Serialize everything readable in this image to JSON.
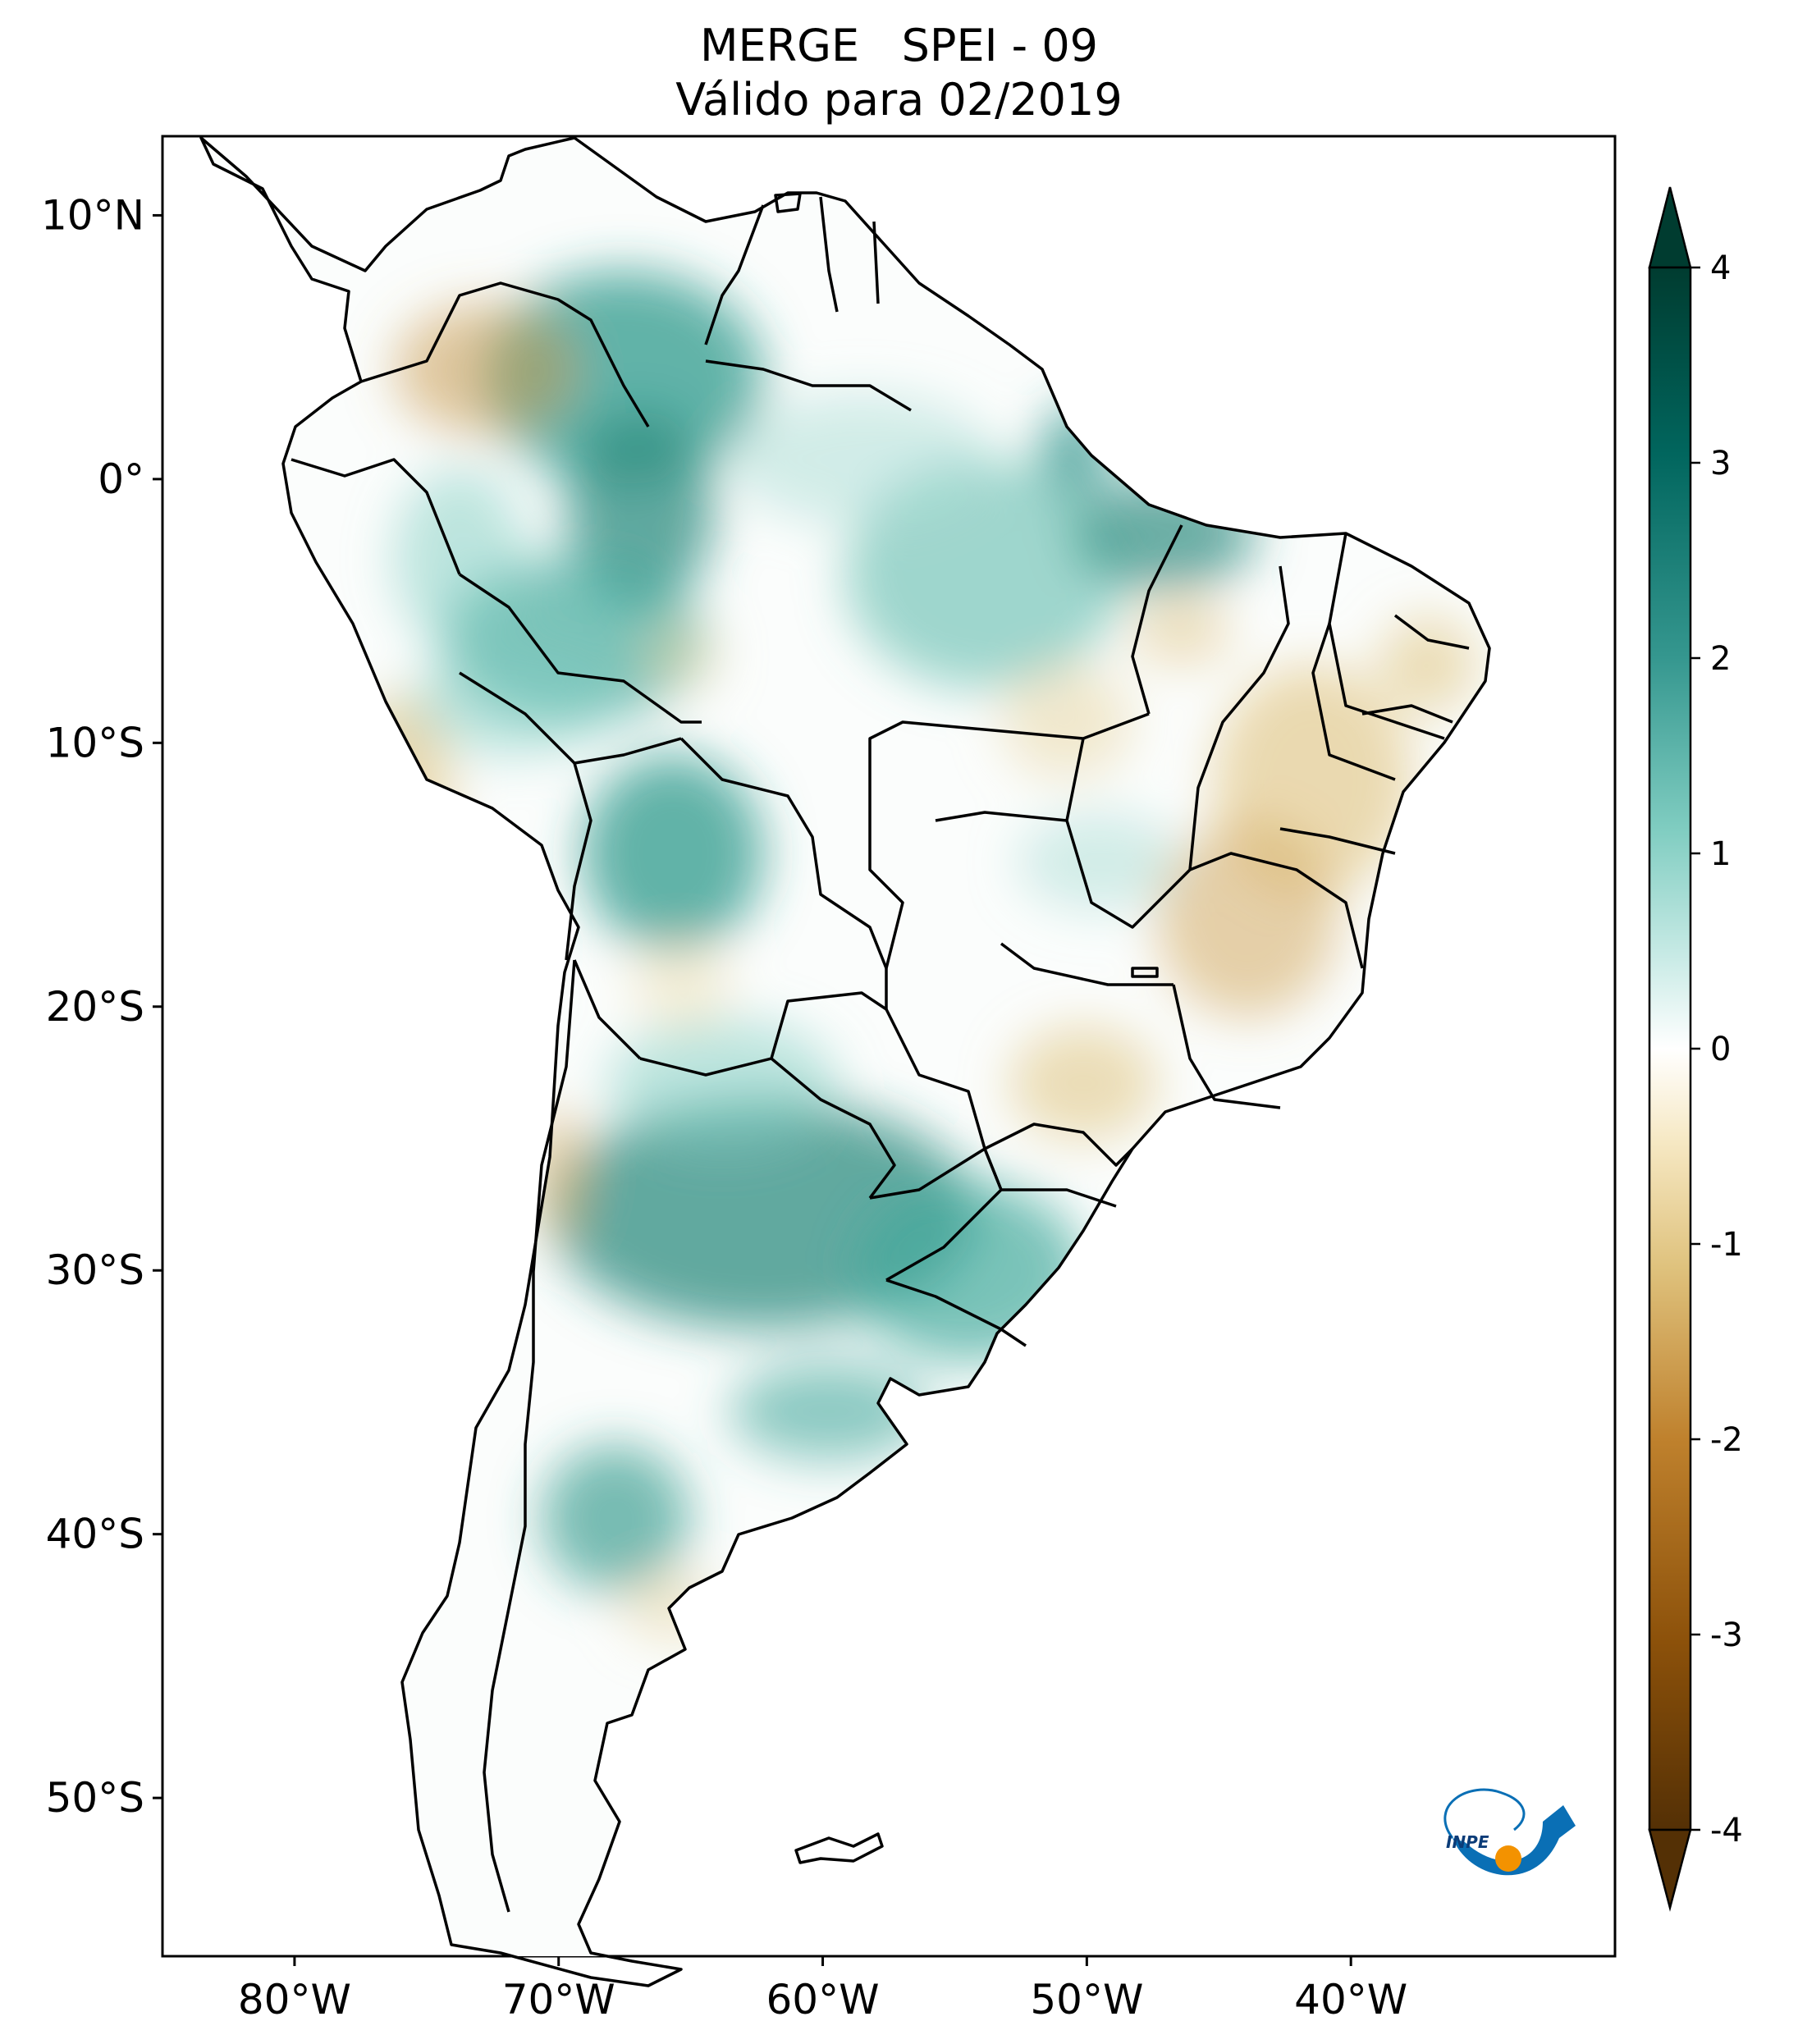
{
  "title": {
    "line1": "MERGE   SPEI - 09",
    "line2": "Válido para 02/2019"
  },
  "map": {
    "region": "South America",
    "lon_range": [
      -85,
      -30
    ],
    "lat_range": [
      -56,
      13
    ],
    "lat_ticks": [
      {
        "value": 10,
        "label": "10°N"
      },
      {
        "value": 0,
        "label": "0°"
      },
      {
        "value": -10,
        "label": "10°S"
      },
      {
        "value": -20,
        "label": "20°S"
      },
      {
        "value": -30,
        "label": "30°S"
      },
      {
        "value": -40,
        "label": "40°S"
      },
      {
        "value": -50,
        "label": "50°S"
      }
    ],
    "lon_ticks": [
      {
        "value": -80,
        "label": "80°W"
      },
      {
        "value": -70,
        "label": "70°W"
      },
      {
        "value": -60,
        "label": "60°W"
      },
      {
        "value": -50,
        "label": "50°W"
      },
      {
        "value": -40,
        "label": "40°W"
      }
    ]
  },
  "colorbar": {
    "range": [
      -4,
      4
    ],
    "extend": "both",
    "ticks": [
      {
        "value": 4,
        "label": "4"
      },
      {
        "value": 3,
        "label": "3"
      },
      {
        "value": 2,
        "label": "2"
      },
      {
        "value": 1,
        "label": "1"
      },
      {
        "value": 0,
        "label": "0"
      },
      {
        "value": -1,
        "label": "-1"
      },
      {
        "value": -2,
        "label": "-2"
      },
      {
        "value": -3,
        "label": "-3"
      },
      {
        "value": -4,
        "label": "-4"
      }
    ],
    "colors": [
      "#543005",
      "#8c510a",
      "#bf812d",
      "#dfc27d",
      "#f6e8c3",
      "#ffffff",
      "#c7eae5",
      "#80cdc1",
      "#35978f",
      "#01665e",
      "#003c30"
    ]
  },
  "logo": {
    "text": "INPE",
    "accent": "#0a6fb5",
    "dot": "#f39200"
  }
}
